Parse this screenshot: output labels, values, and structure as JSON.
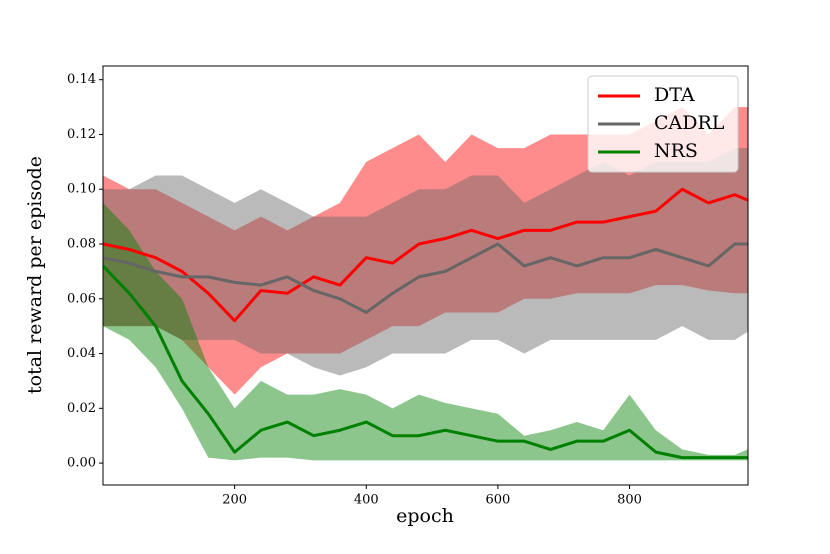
{
  "chart_data": {
    "type": "line",
    "xlabel": "epoch",
    "ylabel": "total reward per episode",
    "x": [
      0,
      40,
      80,
      120,
      160,
      200,
      240,
      280,
      320,
      360,
      400,
      440,
      480,
      520,
      560,
      600,
      640,
      680,
      720,
      760,
      800,
      840,
      880,
      920,
      960,
      980
    ],
    "xlim": [
      0,
      980
    ],
    "ylim": [
      -0.008,
      0.145
    ],
    "xticks": [
      200,
      400,
      600,
      800
    ],
    "yticks": [
      {
        "value": 0,
        "label": "0.00"
      },
      {
        "value": 0.02,
        "label": "0.02"
      },
      {
        "value": 0.04,
        "label": "0.04"
      },
      {
        "value": 0.06,
        "label": "0.06"
      },
      {
        "value": 0.08,
        "label": "0.08"
      },
      {
        "value": 0.1,
        "label": "0.10"
      },
      {
        "value": 0.12,
        "label": "0.12"
      },
      {
        "value": 0.14,
        "label": "0.14"
      }
    ],
    "legend": "upper right",
    "series": [
      {
        "name": "DTA",
        "color": "#ff0000",
        "values": [
          0.08,
          0.078,
          0.075,
          0.07,
          0.062,
          0.052,
          0.063,
          0.062,
          0.068,
          0.065,
          0.075,
          0.073,
          0.08,
          0.082,
          0.085,
          0.082,
          0.085,
          0.085,
          0.088,
          0.088,
          0.09,
          0.092,
          0.1,
          0.095,
          0.098,
          0.096
        ],
        "lower": [
          0.05,
          0.05,
          0.05,
          0.045,
          0.035,
          0.025,
          0.035,
          0.04,
          0.04,
          0.04,
          0.045,
          0.05,
          0.05,
          0.055,
          0.055,
          0.055,
          0.06,
          0.06,
          0.062,
          0.062,
          0.062,
          0.065,
          0.065,
          0.063,
          0.062,
          0.062
        ],
        "upper": [
          0.105,
          0.1,
          0.1,
          0.095,
          0.09,
          0.085,
          0.09,
          0.085,
          0.09,
          0.095,
          0.11,
          0.115,
          0.12,
          0.11,
          0.12,
          0.115,
          0.115,
          0.12,
          0.12,
          0.12,
          0.12,
          0.125,
          0.13,
          0.12,
          0.13,
          0.13
        ]
      },
      {
        "name": "CADRL",
        "color": "#666666",
        "values": [
          0.075,
          0.073,
          0.07,
          0.068,
          0.068,
          0.066,
          0.065,
          0.068,
          0.063,
          0.06,
          0.055,
          0.062,
          0.068,
          0.07,
          0.075,
          0.08,
          0.072,
          0.075,
          0.072,
          0.075,
          0.075,
          0.078,
          0.075,
          0.072,
          0.08,
          0.08
        ],
        "lower": [
          0.05,
          0.05,
          0.05,
          0.045,
          0.045,
          0.045,
          0.04,
          0.04,
          0.035,
          0.032,
          0.035,
          0.04,
          0.04,
          0.04,
          0.045,
          0.045,
          0.04,
          0.045,
          0.045,
          0.045,
          0.045,
          0.045,
          0.05,
          0.045,
          0.045,
          0.048
        ],
        "upper": [
          0.1,
          0.1,
          0.105,
          0.105,
          0.1,
          0.095,
          0.1,
          0.095,
          0.09,
          0.09,
          0.09,
          0.095,
          0.1,
          0.1,
          0.105,
          0.105,
          0.095,
          0.1,
          0.105,
          0.11,
          0.105,
          0.11,
          0.11,
          0.11,
          0.115,
          0.115
        ]
      },
      {
        "name": "NRS",
        "color": "#008000",
        "values": [
          0.072,
          0.062,
          0.05,
          0.03,
          0.018,
          0.004,
          0.012,
          0.015,
          0.01,
          0.012,
          0.015,
          0.01,
          0.01,
          0.012,
          0.01,
          0.008,
          0.008,
          0.005,
          0.008,
          0.008,
          0.012,
          0.004,
          0.002,
          0.002,
          0.002,
          0.002
        ],
        "lower": [
          0.05,
          0.045,
          0.035,
          0.02,
          0.002,
          0.001,
          0.002,
          0.002,
          0.001,
          0.001,
          0.001,
          0.001,
          0.001,
          0.001,
          0.001,
          0.001,
          0.001,
          0.001,
          0.001,
          0.001,
          0.001,
          0.001,
          0.001,
          0.001,
          0.001,
          0.001
        ],
        "upper": [
          0.095,
          0.085,
          0.07,
          0.06,
          0.035,
          0.02,
          0.03,
          0.025,
          0.025,
          0.027,
          0.025,
          0.02,
          0.025,
          0.022,
          0.02,
          0.018,
          0.01,
          0.012,
          0.015,
          0.012,
          0.025,
          0.012,
          0.005,
          0.003,
          0.003,
          0.005
        ]
      }
    ]
  }
}
